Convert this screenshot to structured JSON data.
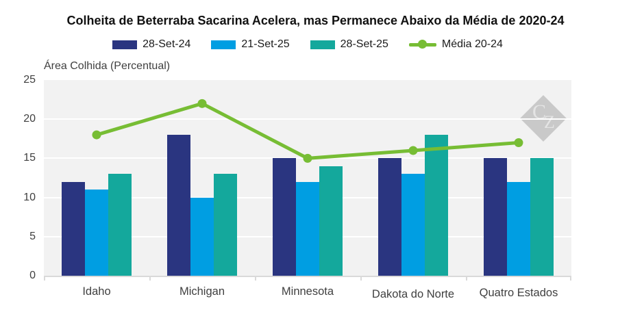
{
  "title": "Colheita de Beterraba Sacarina Acelera, mas Permanece Abaixo da Média de 2020-24",
  "y_axis_title": "Área Colhida (Percentual)",
  "watermark": {
    "letter_1": "C",
    "letter_2": "Z"
  },
  "colors": {
    "series_navy": "#2A3580",
    "series_blue": "#009EE2",
    "series_teal": "#14A89C",
    "series_green": "#77BD34",
    "plot_background": "#F2F2F2",
    "gridline": "#FFFFFF",
    "axis_line": "#D9D9D9",
    "title_text": "#111111",
    "axis_text": "#3F3F3F"
  },
  "chart_data": {
    "type": "bar",
    "title": "Colheita de Beterraba Sacarina Acelera, mas Permanece Abaixo da Média de 2020-24",
    "xlabel": "",
    "ylabel": "Área Colhida (Percentual)",
    "ylim": [
      0,
      25
    ],
    "yticks": [
      0,
      5,
      10,
      15,
      20,
      25
    ],
    "grid": true,
    "legend_position": "top",
    "categories": [
      "Idaho",
      "Michigan",
      "Minnesota",
      "Dakota do Norte",
      "Quatro Estados"
    ],
    "series": [
      {
        "name": "28-Set-24",
        "type": "bar",
        "color": "#2A3580",
        "values": [
          12,
          18,
          15,
          15,
          15
        ]
      },
      {
        "name": "21-Set-25",
        "type": "bar",
        "color": "#009EE2",
        "values": [
          11,
          10,
          12,
          13,
          12
        ]
      },
      {
        "name": "28-Set-25",
        "type": "bar",
        "color": "#14A89C",
        "values": [
          13,
          13,
          14,
          18,
          15
        ]
      },
      {
        "name": "Média 20-24",
        "type": "line",
        "color": "#77BD34",
        "values": [
          18,
          22,
          15,
          16,
          17
        ]
      }
    ]
  }
}
